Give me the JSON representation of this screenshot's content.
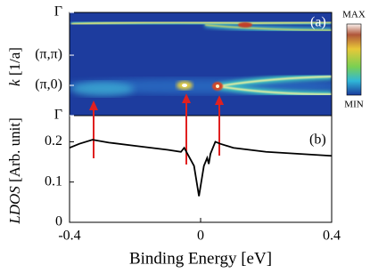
{
  "chart_data": [
    {
      "type": "heatmap",
      "label": "(a)",
      "ylabel_symbol": "k",
      "ylabel_unit": "[1/a]",
      "xlim": [
        -0.4,
        0.4
      ],
      "ylim": [
        0,
        3.414
      ],
      "yticks": [
        {
          "value": 0,
          "label": "Γ"
        },
        {
          "value": 1,
          "label": "(π,0)"
        },
        {
          "value": 2,
          "label": "(π,π)"
        },
        {
          "value": 3.414,
          "label": "Γ"
        }
      ],
      "colorbar": {
        "max_label": "MAX",
        "min_label": "MIN"
      }
    },
    {
      "type": "line",
      "label": "(b)",
      "xlabel": "Binding Energy [eV]",
      "ylabel_symbol": "LDOS",
      "ylabel_unit": "[Arb. unit]",
      "x": [
        -0.4,
        -0.37,
        -0.33,
        -0.28,
        -0.2,
        -0.1,
        -0.06,
        -0.05,
        -0.04,
        -0.02,
        -0.01,
        -0.005,
        0,
        0.01,
        0.02,
        0.025,
        0.03,
        0.045,
        0.06,
        0.1,
        0.2,
        0.3,
        0.4
      ],
      "series": [
        {
          "color": "#000000",
          "values": [
            0.185,
            0.195,
            0.205,
            0.198,
            0.19,
            0.18,
            0.175,
            0.185,
            0.17,
            0.14,
            0.09,
            0.065,
            0.09,
            0.14,
            0.16,
            0.145,
            0.17,
            0.2,
            0.195,
            0.185,
            0.175,
            0.17,
            0.165
          ]
        }
      ],
      "xlim": [
        -0.4,
        0.4
      ],
      "xticks": [
        -0.4,
        0,
        0.4
      ],
      "ylim": [
        0,
        0.265
      ],
      "yticks": [
        0,
        0.1,
        0.2
      ]
    }
  ]
}
